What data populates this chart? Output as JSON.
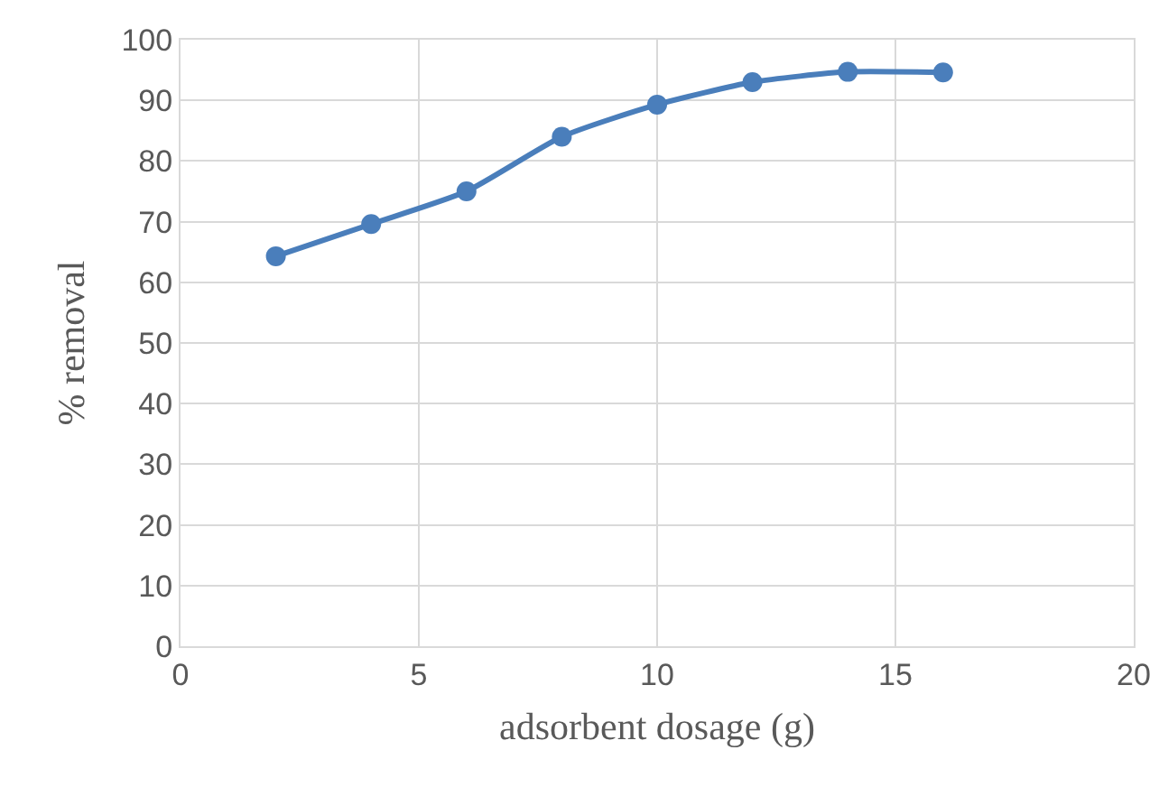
{
  "chart_data": {
    "type": "line",
    "xlabel": "adsorbent dosage (g)",
    "ylabel": "% removal",
    "x": [
      2,
      4,
      6,
      8,
      10,
      12,
      14,
      16
    ],
    "series": [
      {
        "color": "#4a7ebb",
        "values": [
          64.3,
          69.6,
          75,
          84,
          89.3,
          93,
          94.7,
          94.6
        ]
      }
    ],
    "xlim": [
      0,
      20
    ],
    "xticks": [
      0,
      5,
      10,
      15,
      20
    ],
    "ylim": [
      0,
      100
    ],
    "yticks": [
      0,
      10,
      20,
      30,
      40,
      50,
      60,
      70,
      80,
      90,
      100
    ],
    "grid": true,
    "legend": false,
    "marker": "circle",
    "line_style": "solid"
  }
}
